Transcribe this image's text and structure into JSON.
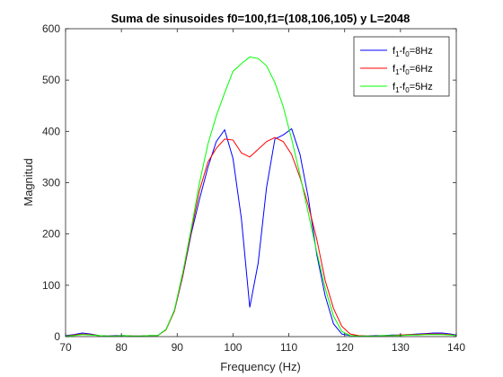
{
  "chart_data": {
    "type": "line",
    "title": "Suma de sinusoides f0=100,f1=(108,106,105) y L=2048",
    "xlabel": "Frequency (Hz)",
    "ylabel": "Magnitud",
    "xlim": [
      70,
      140
    ],
    "ylim": [
      0,
      600
    ],
    "xticks": [
      "70",
      "80",
      "90",
      "100",
      "110",
      "120",
      "130",
      "140"
    ],
    "yticks": [
      "0",
      "100",
      "200",
      "300",
      "400",
      "500",
      "600"
    ],
    "grid": false,
    "legend_position": "top-right",
    "series": [
      {
        "legend": {
          "base": "f",
          "sub1": "1",
          "mid": "-f",
          "sub2": "0",
          "tail": "=8Hz"
        },
        "color": "#0000ff",
        "x": [
          70,
          71.5,
          73,
          74.5,
          76,
          77.5,
          79,
          80.5,
          82,
          83.5,
          85,
          86.5,
          88,
          89.5,
          91,
          92.5,
          94,
          95.5,
          97,
          98.5,
          100,
          101.5,
          103,
          104.5,
          106,
          107.5,
          109,
          110.5,
          112,
          113.5,
          115,
          116.5,
          118,
          119.5,
          121,
          122.5,
          124,
          125.5,
          127,
          128.5,
          130,
          131.5,
          133,
          134.5,
          136,
          137.5,
          139,
          140
        ],
        "y": [
          2,
          4,
          7,
          5,
          2,
          1,
          2,
          2,
          1,
          1,
          2,
          2,
          14,
          50,
          118,
          200,
          268,
          330,
          380,
          403,
          347,
          230,
          57,
          143,
          290,
          385,
          393,
          405,
          355,
          270,
          160,
          80,
          25,
          5,
          2,
          1,
          1,
          2,
          2,
          3,
          3,
          4,
          5,
          6,
          7,
          7,
          5,
          3
        ]
      },
      {
        "legend": {
          "base": "f",
          "sub1": "1",
          "mid": "-f",
          "sub2": "0",
          "tail": "=6Hz"
        },
        "color": "#ff0000",
        "x": [
          70,
          71.5,
          73,
          74.5,
          76,
          77.5,
          79,
          80.5,
          82,
          83.5,
          85,
          86.5,
          88,
          89.5,
          91,
          92.5,
          94,
          95.5,
          97,
          98.5,
          100,
          101.5,
          103,
          104.5,
          106,
          107.5,
          109,
          110.5,
          112,
          113.5,
          115,
          116.5,
          118,
          119.5,
          121,
          122.5,
          124,
          125.5,
          127,
          128.5,
          130,
          131.5,
          133,
          134.5,
          136,
          137.5,
          139,
          140
        ],
        "y": [
          1,
          3,
          5,
          4,
          2,
          1,
          1,
          2,
          1,
          1,
          2,
          2,
          13,
          50,
          120,
          205,
          285,
          340,
          367,
          385,
          383,
          358,
          350,
          365,
          380,
          388,
          380,
          355,
          310,
          255,
          190,
          110,
          55,
          20,
          5,
          2,
          1,
          1,
          2,
          2,
          3,
          4,
          4,
          5,
          5,
          5,
          4,
          2
        ]
      },
      {
        "legend": {
          "base": "f",
          "sub1": "1",
          "mid": "-f",
          "sub2": "0",
          "tail": "=5Hz"
        },
        "color": "#00ff00",
        "x": [
          70,
          71.5,
          73,
          74.5,
          76,
          77.5,
          79,
          80.5,
          82,
          83.5,
          85,
          86.5,
          88,
          89.5,
          91,
          92.5,
          94,
          95.5,
          97,
          98.5,
          100,
          101.5,
          103,
          104.5,
          106,
          107.5,
          109,
          110.5,
          112,
          113.5,
          115,
          116.5,
          118,
          119.5,
          121,
          122.5,
          124,
          125.5,
          127,
          128.5,
          130,
          131.5,
          133,
          134.5,
          136,
          137.5,
          139,
          140
        ],
        "y": [
          1,
          2,
          4,
          3,
          2,
          1,
          1,
          2,
          1,
          1,
          2,
          2,
          14,
          52,
          125,
          210,
          300,
          375,
          430,
          475,
          517,
          532,
          545,
          542,
          528,
          495,
          448,
          385,
          315,
          240,
          165,
          95,
          40,
          10,
          2,
          1,
          1,
          1,
          2,
          2,
          2,
          3,
          3,
          4,
          4,
          4,
          3,
          2
        ]
      }
    ]
  }
}
